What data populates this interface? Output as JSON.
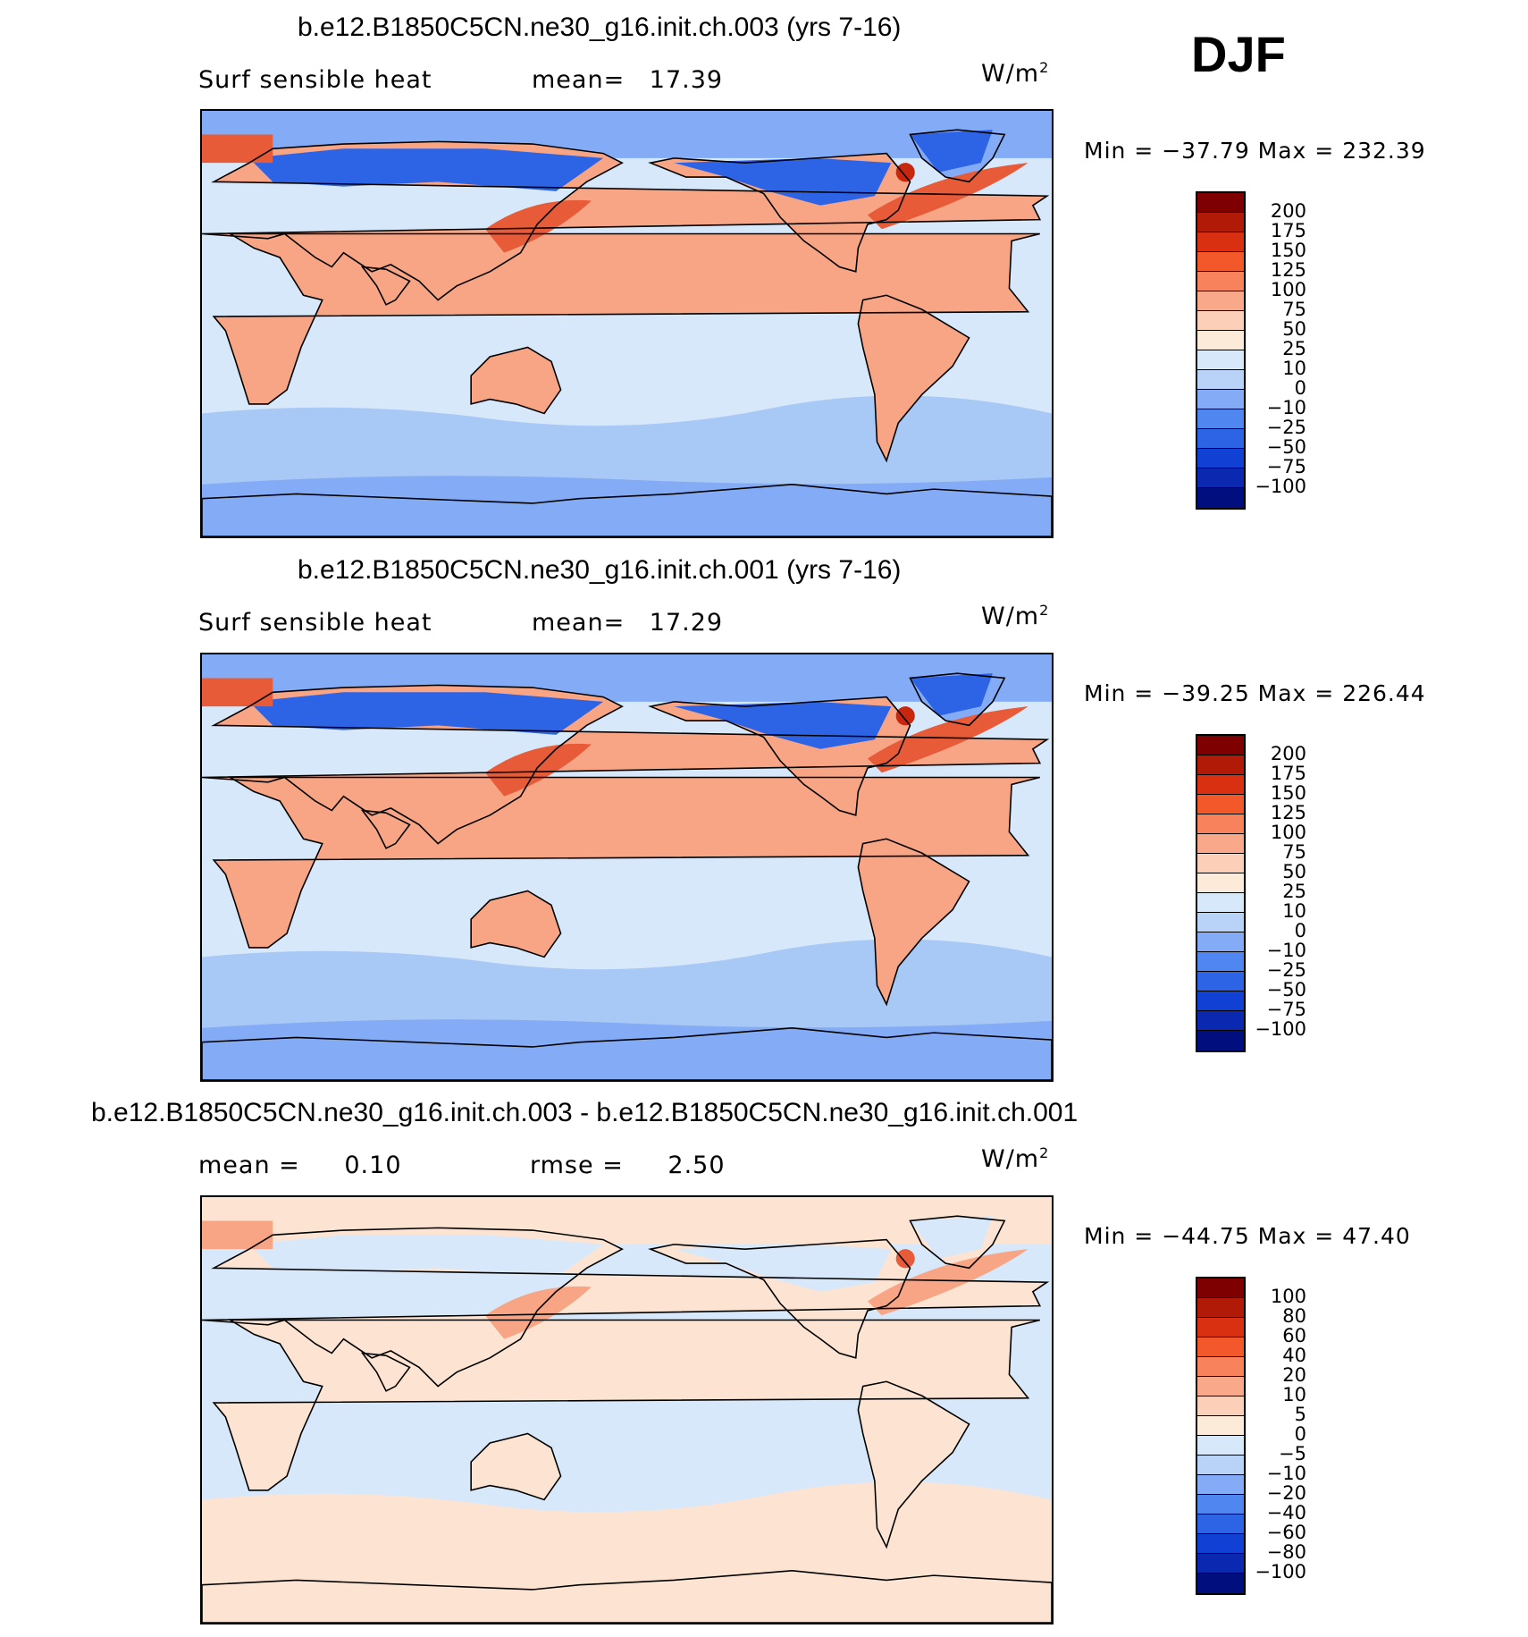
{
  "season": "DJF",
  "panels": [
    {
      "title": "b.e12.B1850C5CN.ne30_g16.init.ch.003 (yrs 7-16)",
      "left_label": "Surf sensible heat",
      "stat_label": "mean=",
      "stat_value": "17.39",
      "units_base": "W/m",
      "units_exp": "2",
      "minmax": "Min = −37.79 Max = 232.39",
      "colorbar_labels": [
        "200",
        "175",
        "150",
        "125",
        "100",
        "75",
        "50",
        "25",
        "10",
        "0",
        "−10",
        "−25",
        "−50",
        "−75",
        "−100"
      ],
      "colors": {
        "land_warm": "#f7a585",
        "ocean": "#d8e8fb",
        "southern_ocean": "#a8c8f5",
        "polar": "#84abf5",
        "arctic_land": "#2d64e6",
        "wbc": "#e85b38",
        "peak": "#c8260d"
      }
    },
    {
      "title": "b.e12.B1850C5CN.ne30_g16.init.ch.001 (yrs 7-16)",
      "left_label": "Surf sensible heat",
      "stat_label": "mean=",
      "stat_value": "17.29",
      "units_base": "W/m",
      "units_exp": "2",
      "minmax": "Min = −39.25 Max = 226.44",
      "colorbar_labels": [
        "200",
        "175",
        "150",
        "125",
        "100",
        "75",
        "50",
        "25",
        "10",
        "0",
        "−10",
        "−25",
        "−50",
        "−75",
        "−100"
      ],
      "colors": {
        "land_warm": "#f7a585",
        "ocean": "#d8e8fb",
        "southern_ocean": "#a8c8f5",
        "polar": "#84abf5",
        "arctic_land": "#2d64e6",
        "wbc": "#e85b38",
        "peak": "#c8260d"
      }
    },
    {
      "title": "b.e12.B1850C5CN.ne30_g16.init.ch.003 - b.e12.B1850C5CN.ne30_g16.init.ch.001",
      "left_label": "mean =",
      "left_value": "0.10",
      "stat_label": "rmse =",
      "stat_value": "2.50",
      "units_base": "W/m",
      "units_exp": "2",
      "minmax": "Min = −44.75 Max =  47.40",
      "colorbar_labels": [
        "100",
        "80",
        "60",
        "40",
        "20",
        "10",
        "5",
        "0",
        "−5",
        "−10",
        "−20",
        "−40",
        "−60",
        "−80",
        "−100"
      ],
      "colors": {
        "land_warm": "#fde4d2",
        "ocean": "#d8e8fb",
        "southern_ocean": "#fde4d2",
        "polar": "#fde4d2",
        "arctic_land": "#d8e8fb",
        "wbc": "#f7a585",
        "peak": "#e85b38"
      }
    }
  ],
  "colorbar_colors": [
    "#7f0000",
    "#b01a06",
    "#d83010",
    "#f2582a",
    "#f7825c",
    "#f9a989",
    "#fccfb8",
    "#fdebda",
    "#d8e8fb",
    "#b8d2f8",
    "#84abf5",
    "#4f86ef",
    "#2d64e6",
    "#1041d4",
    "#0a28b0",
    "#000f7d"
  ]
}
